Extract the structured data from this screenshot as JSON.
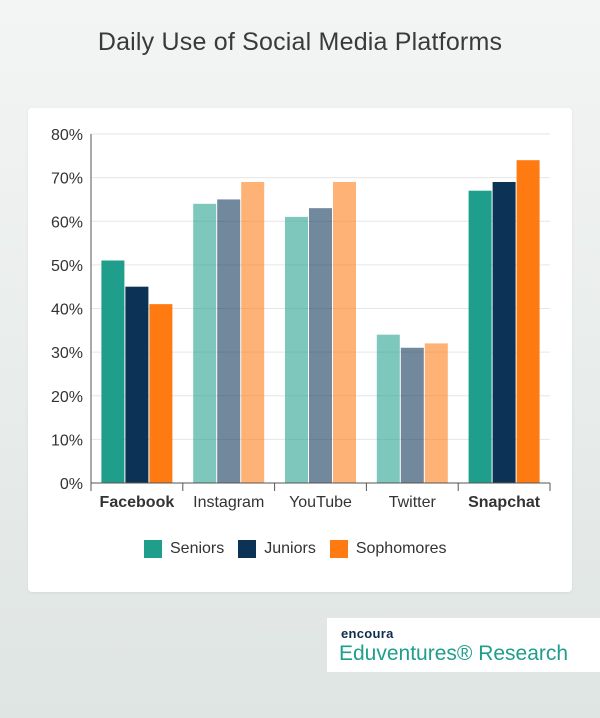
{
  "title": "Daily Use of Social Media Platforms",
  "chart_data": {
    "type": "bar",
    "categories": [
      "Facebook",
      "Instagram",
      "YouTube",
      "Twitter",
      "Snapchat"
    ],
    "bold_categories": [
      "Facebook",
      "Snapchat"
    ],
    "highlighted_categories": [
      "Facebook",
      "Snapchat"
    ],
    "series": [
      {
        "name": "Seniors",
        "values": [
          51,
          64,
          61,
          34,
          67
        ],
        "color": "#1f9e8b"
      },
      {
        "name": "Juniors",
        "values": [
          45,
          65,
          63,
          31,
          69
        ],
        "color": "#0c3256"
      },
      {
        "name": "Sophomores",
        "values": [
          41,
          69,
          69,
          32,
          74
        ],
        "color": "#ff7b12"
      }
    ],
    "yticks": [
      "0%",
      "10%",
      "20%",
      "30%",
      "40%",
      "50%",
      "60%",
      "70%",
      "80%"
    ],
    "ylim": [
      0,
      80
    ],
    "grid": true,
    "legend_position": "bottom"
  },
  "brand": {
    "top": "encoura",
    "bottom": "Eduventures® Research"
  }
}
